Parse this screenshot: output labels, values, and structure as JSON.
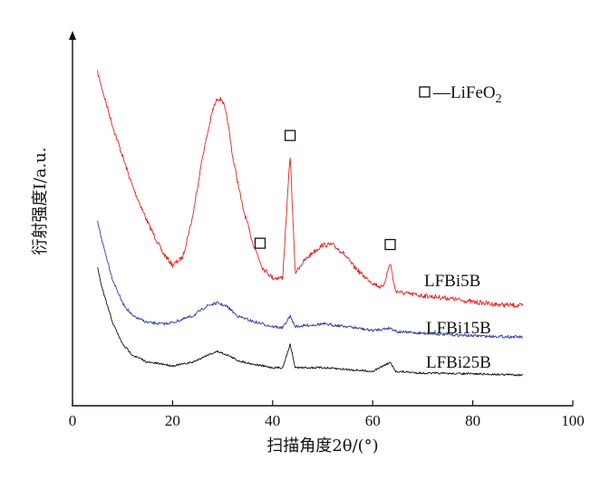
{
  "chart_data": {
    "type": "line",
    "xlabel": "扫描角度2θ/(°)",
    "ylabel": "衍射强度I/a.u.",
    "xlim": [
      0,
      100
    ],
    "xticks": [
      "0",
      "20",
      "40",
      "60",
      "80",
      "100"
    ],
    "yticks_shown": false,
    "grid": false,
    "legend": {
      "marker": "open-square",
      "text": "—LiFeO",
      "subscript": "2",
      "placement": "top-right"
    },
    "series": [
      {
        "name": "LFBi5B",
        "color": "#e8231f",
        "x": [
          5,
          8,
          10,
          12,
          15,
          18,
          20,
          22,
          24,
          26,
          28,
          29,
          30,
          31,
          32,
          34,
          36,
          38,
          40,
          42,
          43.5,
          44.5,
          46,
          48,
          50,
          52,
          54,
          56,
          58,
          60,
          62,
          63.5,
          64.5,
          66,
          70,
          75,
          80,
          85,
          90
        ],
        "y": [
          95,
          74,
          62,
          50,
          36,
          24,
          19,
          22,
          38,
          62,
          80,
          85,
          84,
          76,
          62,
          42,
          28,
          18,
          14,
          14,
          63,
          16,
          20,
          24,
          27,
          27,
          24,
          19,
          15,
          12,
          10,
          20,
          9,
          8,
          7,
          6,
          4.5,
          3.5,
          3
        ]
      },
      {
        "name": "LFBi15B",
        "color": "#2f3fa6",
        "x": [
          5,
          6,
          8,
          10,
          12,
          15,
          18,
          20,
          24,
          27,
          29,
          31,
          33,
          36,
          40,
          42,
          43.5,
          44.5,
          50,
          55,
          60,
          63.5,
          65,
          70,
          80,
          90
        ],
        "y": [
          46,
          38,
          24,
          15,
          10,
          7.5,
          7,
          7.5,
          10,
          14,
          15,
          13.5,
          10,
          8,
          6,
          5.5,
          10,
          6,
          7,
          6,
          4.5,
          5.5,
          4,
          3.5,
          2.5,
          2
        ]
      },
      {
        "name": "LFBi25B",
        "color": "#111111",
        "x": [
          5,
          6,
          8,
          10,
          12,
          15,
          18,
          20,
          24,
          27,
          29,
          31,
          33,
          36,
          40,
          42,
          43.5,
          44.5,
          50,
          55,
          60,
          63.5,
          64.5,
          70,
          80,
          90
        ],
        "y": [
          30,
          24,
          15,
          9,
          6,
          4,
          3.5,
          3,
          4,
          6,
          7,
          6,
          4.5,
          3.5,
          2.5,
          2.5,
          9,
          2.5,
          2.5,
          2,
          1.5,
          4,
          1.5,
          1,
          0.8,
          0.5
        ]
      }
    ],
    "peak_markers": [
      37.5,
      43.5,
      63.5
    ]
  }
}
